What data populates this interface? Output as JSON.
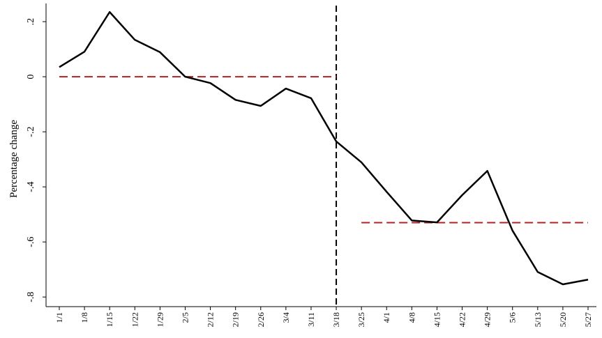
{
  "chart_data": {
    "type": "line",
    "y_label": "Percentage change",
    "categories": [
      "1/1",
      "1/8",
      "1/15",
      "1/22",
      "1/29",
      "2/5",
      "2/12",
      "2/19",
      "2/26",
      "3/4",
      "3/11",
      "3/18",
      "3/25",
      "4/1",
      "4/8",
      "4/15",
      "4/22",
      "4/29",
      "5/6",
      "5/13",
      "5/20",
      "5/27"
    ],
    "series": [
      {
        "color": "#000000",
        "values": [
          0.035,
          0.091,
          0.235,
          0.134,
          0.089,
          0.0,
          -0.023,
          -0.084,
          -0.106,
          -0.043,
          -0.078,
          -0.235,
          -0.311,
          -0.418,
          -0.522,
          -0.529,
          -0.43,
          -0.342,
          -0.559,
          -0.709,
          -0.754,
          -0.737
        ]
      }
    ],
    "ylim": [
      -0.835,
      0.266
    ],
    "yticks": [
      {
        "value": 0.2,
        "label": ".2"
      },
      0,
      {
        "value": -0.2,
        "label": "-.2"
      },
      {
        "value": -0.4,
        "label": "-.4"
      },
      {
        "value": -0.6,
        "label": "-.6"
      },
      {
        "value": -0.8,
        "label": "-.8"
      }
    ],
    "mean_lines": [
      {
        "value": 0,
        "from": "1/1",
        "to": "3/18"
      },
      {
        "value": -0.53,
        "from": "3/25",
        "to": "5/27"
      }
    ],
    "mean_line_color": "#b22222",
    "vline": "3/18"
  }
}
